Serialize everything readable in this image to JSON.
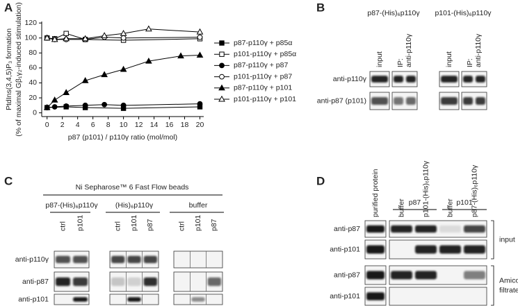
{
  "chart_data": {
    "type": "line",
    "label": "A",
    "ylabel": [
      "PtdIns(3,4,5)P₃ formation",
      "(% of maximal Gβ₁γ₂-induced stimulation)"
    ],
    "xlabel": "p87 (p101) / p110γ ratio (mol/mol)",
    "xlim": [
      -0.7,
      20.5
    ],
    "xticks": [
      0,
      2,
      4,
      6,
      8,
      10,
      12,
      14,
      16,
      18,
      20
    ],
    "ylim": [
      -5,
      122
    ],
    "yticks": [
      0,
      20,
      40,
      60,
      80,
      100,
      120
    ],
    "series": [
      {
        "name": "p87-p110γ + p85α",
        "color": "#000000",
        "marker": "square",
        "filled": true,
        "x": [
          0,
          2.5,
          5,
          10,
          20
        ],
        "values": [
          7,
          8,
          7,
          6,
          8
        ]
      },
      {
        "name": "p101-p110γ + p85α",
        "color": "#000000",
        "marker": "square",
        "filled": false,
        "x": [
          0,
          1,
          2.5,
          5,
          10,
          20
        ],
        "values": [
          100,
          99,
          106,
          98,
          97,
          99
        ]
      },
      {
        "name": "p87-p110γ + p87",
        "color": "#000000",
        "marker": "circle",
        "filled": true,
        "x": [
          0,
          1,
          2.5,
          5,
          7.5,
          10,
          20
        ],
        "values": [
          7,
          8,
          9,
          10,
          11,
          10,
          12
        ]
      },
      {
        "name": "p101-p110γ + p87",
        "color": "#000000",
        "marker": "circle",
        "filled": false,
        "x": [
          0,
          1,
          2.5,
          5,
          7.5,
          10,
          20
        ],
        "values": [
          100,
          98,
          98,
          98,
          101,
          100,
          101
        ]
      },
      {
        "name": "p87-p110γ + p101",
        "color": "#000000",
        "marker": "triangle",
        "filled": true,
        "x": [
          0,
          1,
          2.5,
          5,
          7.5,
          10,
          13.3,
          17.5,
          20
        ],
        "values": [
          7,
          17,
          27,
          43,
          51,
          58,
          69,
          76,
          77
        ]
      },
      {
        "name": "p101-p110γ + p101",
        "color": "#000000",
        "marker": "triangle",
        "filled": false,
        "x": [
          0,
          1,
          2.5,
          5,
          7.5,
          10,
          13.3,
          20
        ],
        "values": [
          100,
          98,
          99,
          99,
          103,
          106,
          112,
          108
        ]
      }
    ]
  },
  "panels": {
    "B": {
      "label": "B",
      "groups": [
        {
          "title": "p87-(His)₆p110γ",
          "lanes": [
            [
              "input"
            ],
            [
              "IP:",
              "anti-p110γ"
            ]
          ]
        },
        {
          "title": "p101-(His)₆p110γ",
          "lanes": [
            [
              "input"
            ],
            [
              "IP:",
              "anti-p110γ"
            ]
          ]
        }
      ],
      "rows": [
        "anti-p110γ",
        "anti-p87 (p101)"
      ]
    },
    "C": {
      "label": "C",
      "title": "Ni Sepharose™ 6 Fast Flow beads",
      "groups": [
        {
          "title": "p87-(His)₆p110γ",
          "lanes": [
            "ctrl",
            "p101"
          ]
        },
        {
          "title": "(His)₆p110γ",
          "lanes": [
            "ctrl",
            "p101",
            "p87"
          ]
        },
        {
          "title": "buffer",
          "lanes": [
            "ctrl",
            "p101",
            "p87"
          ]
        }
      ],
      "rows": [
        "anti-p110γ",
        "anti-p87",
        "anti-p101"
      ]
    },
    "D": {
      "label": "D",
      "lanes": [
        "purified protein",
        "buffer",
        "p101-(His)₆p110γ",
        "buffer",
        "p87-(His)₆p110γ"
      ],
      "groups": [
        "p87",
        "p101"
      ],
      "rows": [
        "anti-p87",
        "anti-p101",
        "anti-p87",
        "anti-p101"
      ],
      "sections": [
        [
          "input"
        ],
        [
          "Amicon",
          "filtrate"
        ]
      ]
    }
  }
}
